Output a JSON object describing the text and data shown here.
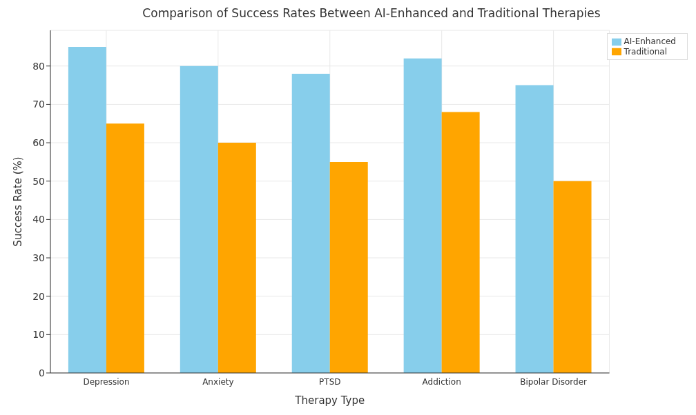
{
  "chart_data": {
    "type": "bar",
    "title": "Comparison of Success Rates Between AI-Enhanced and Traditional Therapies",
    "xlabel": "Therapy Type",
    "ylabel": "Success Rate (%)",
    "categories": [
      "Depression",
      "Anxiety",
      "PTSD",
      "Addiction",
      "Bipolar Disorder"
    ],
    "series": [
      {
        "name": "AI-Enhanced",
        "color": "#87ceeb",
        "values": [
          85,
          80,
          78,
          82,
          75
        ]
      },
      {
        "name": "Traditional",
        "color": "#ffa500",
        "values": [
          65,
          60,
          55,
          68,
          50
        ]
      }
    ],
    "ylim": [
      0,
      89.3
    ],
    "yticks": [
      0,
      10,
      20,
      30,
      40,
      50,
      60,
      70,
      80
    ],
    "grid": true,
    "legend": "top right"
  }
}
